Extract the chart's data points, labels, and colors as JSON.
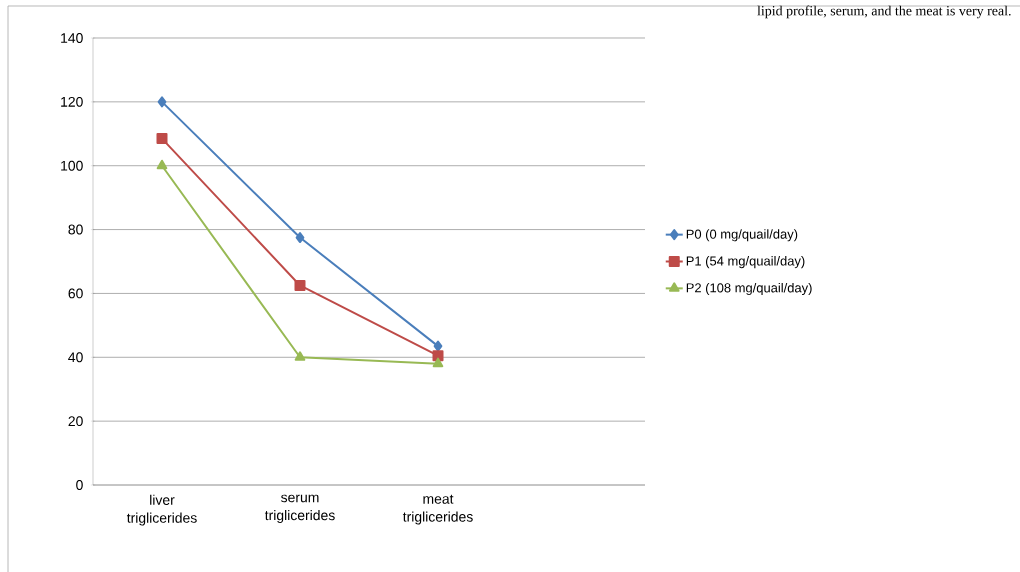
{
  "chart_data": {
    "type": "line",
    "annotations": [
      "lipid profile, serum, and the meat is very real."
    ],
    "categories": [
      "liver triglicerides",
      "serum triglicerides",
      "meat triglicerides",
      null
    ],
    "series": [
      {
        "name": "P0 (0 mg/quail/day)",
        "color": "#4a7ebb",
        "marker": "diamond",
        "values": [
          120,
          77.5,
          43.5,
          null
        ]
      },
      {
        "name": "P1 (54 mg/quail/day)",
        "color": "#be4b48",
        "marker": "square",
        "values": [
          108.5,
          62.5,
          40.5,
          null
        ]
      },
      {
        "name": "P2 (108 mg/quail/day)",
        "color": "#98b954",
        "marker": "triangle",
        "values": [
          100,
          40,
          38,
          null
        ]
      }
    ],
    "ylim": [
      0,
      140
    ],
    "yticks": [
      0,
      20,
      40,
      60,
      80,
      100,
      120,
      140
    ],
    "grid": "y",
    "legend": "right"
  }
}
